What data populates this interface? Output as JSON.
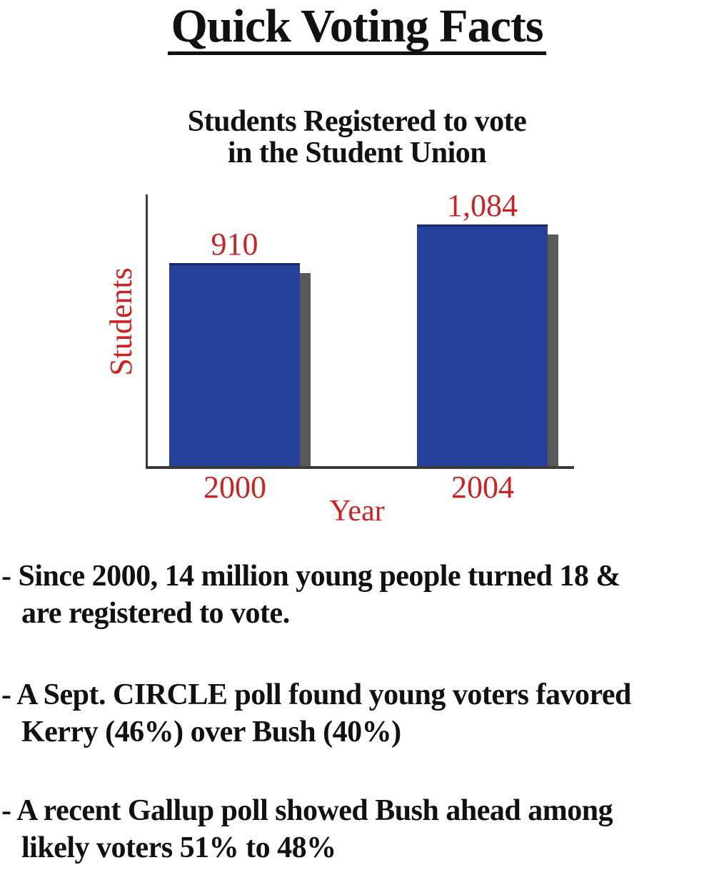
{
  "page_title": "Quick Voting Facts",
  "chart_title": {
    "line1": "Students Registered to vote",
    "line2": "in the Student Union"
  },
  "chart_data": {
    "type": "bar",
    "title": "Students Registered to vote in the Student Union",
    "categories": [
      "2000",
      "2004"
    ],
    "values": [
      910,
      1084
    ],
    "value_labels": [
      "910",
      "1,084"
    ],
    "xlabel": "Year",
    "ylabel": "Students",
    "ylim": [
      0,
      1150
    ],
    "grid": false,
    "legend": "none",
    "bar_color": "#24409b",
    "bar_shadow_color": "#595959",
    "label_color": "#cc2222",
    "axis_color": "#3c3c3c"
  },
  "facts": [
    {
      "lines": [
        "- Since 2000, 14 million young people turned 18 &",
        "are registered to vote."
      ]
    },
    {
      "lines": [
        "- A Sept. CIRCLE poll found young voters favored",
        "Kerry (46%) over Bush (40%)"
      ]
    },
    {
      "lines": [
        "- A recent Gallup poll showed Bush ahead among",
        "likely voters 51% to 48%"
      ]
    }
  ]
}
